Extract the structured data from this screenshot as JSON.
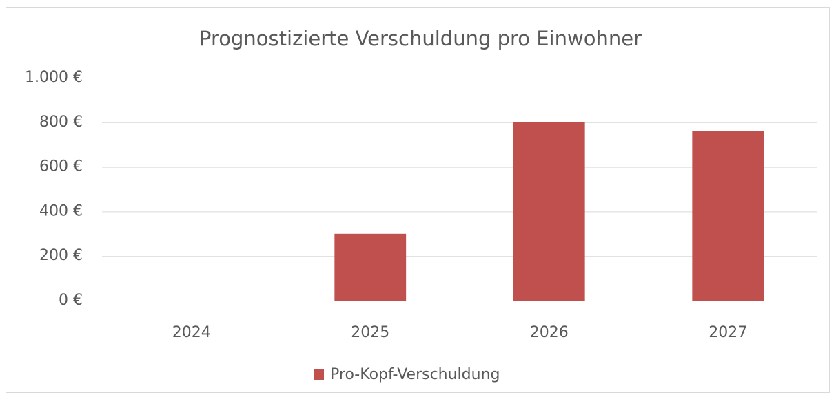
{
  "chart_data": {
    "type": "bar",
    "title": "Prognostizierte Verschuldung pro Einwohner",
    "categories": [
      "2024",
      "2025",
      "2026",
      "2027"
    ],
    "series": [
      {
        "name": "Pro-Kopf-Verschuldung",
        "color": "#c0504d",
        "values": [
          0,
          300,
          800,
          760
        ]
      }
    ],
    "ylim": [
      0,
      1000
    ],
    "yticks": [
      {
        "value": 0,
        "label": "0 €"
      },
      {
        "value": 200,
        "label": "200 €"
      },
      {
        "value": 400,
        "label": "400 €"
      },
      {
        "value": 600,
        "label": "600 €"
      },
      {
        "value": 800,
        "label": "800 €"
      },
      {
        "value": 1000,
        "label": "1.000 €"
      }
    ],
    "grid": true,
    "legend": "bottom"
  }
}
